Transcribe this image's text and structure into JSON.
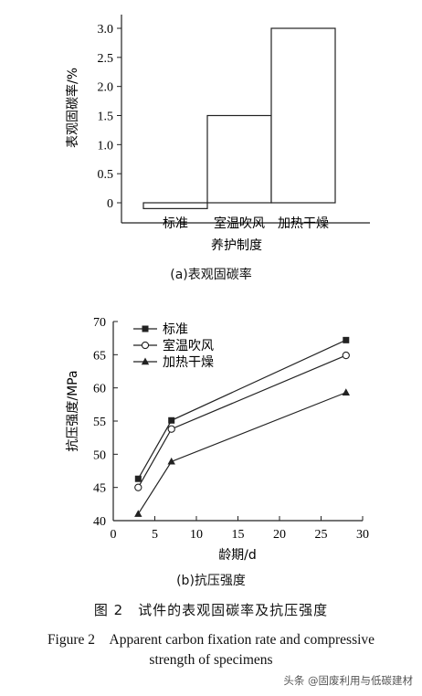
{
  "chart_data": [
    {
      "type": "bar",
      "panel_label": "(a)表观固碳率",
      "categories": [
        "标准",
        "室温吹风",
        "加热干燥"
      ],
      "values": [
        -0.1,
        1.5,
        3.0
      ],
      "xlabel": "养护制度",
      "ylabel": "表观固碳率/%",
      "ylim": [
        -0.1,
        3.0
      ],
      "yticks": [
        0,
        0.5,
        1.0,
        1.5,
        2.0,
        2.5,
        3.0
      ],
      "ytick_labels": [
        "0",
        "0.5",
        "1.0",
        "1.5",
        "2.0",
        "2.5",
        "3.0"
      ],
      "bar_color": "#ffffff",
      "edge_color": "#222222"
    },
    {
      "type": "line",
      "panel_label": "(b)抗压强度",
      "xlabel": "龄期/d",
      "ylabel": "抗压强度/MPa",
      "xlim": [
        0,
        30
      ],
      "ylim": [
        40,
        70
      ],
      "xticks": [
        0,
        5,
        10,
        15,
        20,
        25,
        30
      ],
      "yticks": [
        40,
        45,
        50,
        55,
        60,
        65,
        70
      ],
      "x": [
        3,
        7,
        28
      ],
      "series": [
        {
          "name": "标准",
          "values": [
            46.3,
            55.1,
            67.2
          ],
          "marker": "square-filled"
        },
        {
          "name": "室温吹风",
          "values": [
            45.0,
            53.8,
            64.9
          ],
          "marker": "circle-open"
        },
        {
          "name": "加热干燥",
          "values": [
            41.0,
            48.9,
            59.3
          ],
          "marker": "triangle-filled"
        }
      ],
      "legend_position": "top-left",
      "line_color": "#222222"
    }
  ],
  "figure": {
    "caption_cn": "图 2　试件的表观固碳率及抗压强度",
    "caption_en_1": "Figure 2　Apparent carbon fixation rate and compressive",
    "caption_en_2": "strength of specimens"
  },
  "watermark": "头条 @固废利用与低碳建材"
}
